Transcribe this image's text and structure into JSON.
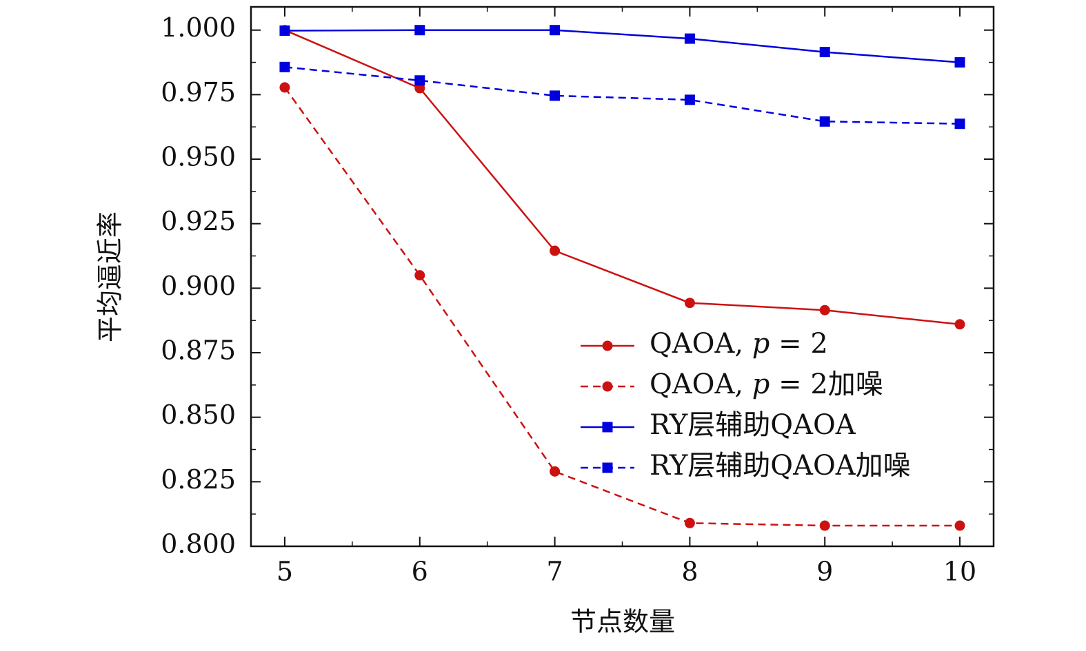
{
  "chart_data": {
    "type": "line",
    "title": "",
    "xlabel": "节点数量",
    "ylabel": "平均逼近率",
    "x": [
      5,
      6,
      7,
      8,
      9,
      10
    ],
    "xlim": [
      4.75,
      10.25
    ],
    "ylim": [
      0.8,
      1.009
    ],
    "x_ticks": [
      "5",
      "6",
      "7",
      "8",
      "9",
      "10"
    ],
    "y_ticks": [
      "0.800",
      "0.825",
      "0.850",
      "0.875",
      "0.900",
      "0.925",
      "0.950",
      "0.975",
      "1.000"
    ],
    "grid": false,
    "legend_position": "bottom-right",
    "series": [
      {
        "name": "QAOA, p = 2",
        "legend_parts": [
          "QAOA, ",
          "p",
          " = 2"
        ],
        "color": "#cc1111",
        "dash": "solid",
        "marker": "circle",
        "values": [
          1.0,
          0.9775,
          0.9145,
          0.8943,
          0.8915,
          0.886
        ]
      },
      {
        "name": "QAOA, p = 2加噪",
        "legend_parts": [
          "QAOA, ",
          "p",
          " = 2加噪"
        ],
        "color": "#cc1111",
        "dash": "dashed",
        "marker": "circle",
        "values": [
          0.9778,
          0.905,
          0.829,
          0.809,
          0.808,
          0.808
        ]
      },
      {
        "name": "RY层辅助QAOA",
        "legend_parts": [
          "RY层辅助QAOA",
          "",
          ""
        ],
        "color": "#0000dd",
        "dash": "solid",
        "marker": "square",
        "values": [
          0.9998,
          1.0,
          1.0,
          0.9967,
          0.9915,
          0.9875
        ]
      },
      {
        "name": "RY层辅助QAOA加噪",
        "legend_parts": [
          "RY层辅助QAOA加噪",
          "",
          ""
        ],
        "color": "#0000dd",
        "dash": "dashed",
        "marker": "square",
        "values": [
          0.9857,
          0.9805,
          0.9746,
          0.973,
          0.9646,
          0.9637
        ]
      }
    ]
  }
}
